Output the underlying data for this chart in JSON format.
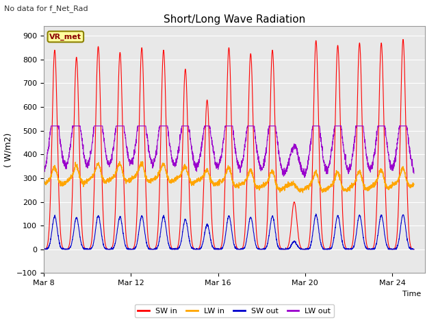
{
  "title": "Short/Long Wave Radiation",
  "top_left_text": "No data for f_Net_Rad",
  "vr_met_label": "VR_met",
  "ylabel": "( W/m2)",
  "xlabel": "Time",
  "ylim": [
    -100,
    940
  ],
  "yticks": [
    -100,
    0,
    100,
    200,
    300,
    400,
    500,
    600,
    700,
    800,
    900
  ],
  "xtick_labels": [
    "Mar 8",
    "Mar 12",
    "Mar 16",
    "Mar 20",
    "Mar 24"
  ],
  "sw_in_color": "#FF0000",
  "lw_in_color": "#FFA500",
  "sw_out_color": "#0000CC",
  "lw_out_color": "#9900CC",
  "bg_color": "#E8E8E8",
  "fig_bg": "#FFFFFF",
  "grid_color": "#FFFFFF",
  "start_day": 8,
  "end_day": 25.5,
  "n_days": 17,
  "sw_amplitudes": [
    840,
    810,
    855,
    830,
    850,
    840,
    760,
    630,
    850,
    825,
    840,
    200,
    880,
    860,
    870,
    870,
    885
  ]
}
